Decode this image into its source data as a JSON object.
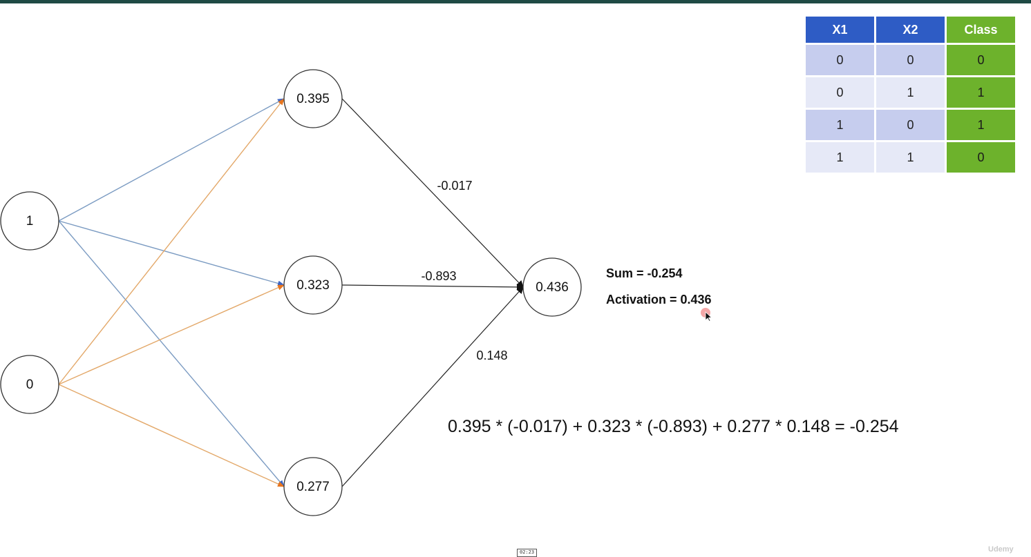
{
  "network": {
    "inputs": [
      {
        "id": "x1",
        "value": "1"
      },
      {
        "id": "x2",
        "value": "0"
      }
    ],
    "hidden": [
      {
        "id": "h1",
        "value": "0.395"
      },
      {
        "id": "h2",
        "value": "0.323"
      },
      {
        "id": "h3",
        "value": "0.277"
      }
    ],
    "output": {
      "id": "out",
      "value": "0.436"
    },
    "output_weights": [
      "-0.017",
      "-0.893",
      "0.148"
    ],
    "colors": {
      "input1_edges": "#7b9bc2",
      "input2_edges": "#e3a869",
      "input1_arrow": "#3d66c4",
      "input2_arrow": "#e8761f",
      "output_edges": "#222222",
      "node_stroke": "#333333"
    }
  },
  "info": {
    "sum": "Sum = -0.254",
    "activation": "Activation = 0.436"
  },
  "formula": "0.395 * (-0.017) + 0.323 * (-0.893) + 0.277 * 0.148 = -0.254",
  "table": {
    "headers": [
      "X1",
      "X2",
      "Class"
    ],
    "rows": [
      [
        "0",
        "0",
        "0"
      ],
      [
        "0",
        "1",
        "1"
      ],
      [
        "1",
        "0",
        "1"
      ],
      [
        "1",
        "1",
        "0"
      ]
    ]
  },
  "video": {
    "timestamp": "02:23",
    "watermark": "Udemy"
  }
}
